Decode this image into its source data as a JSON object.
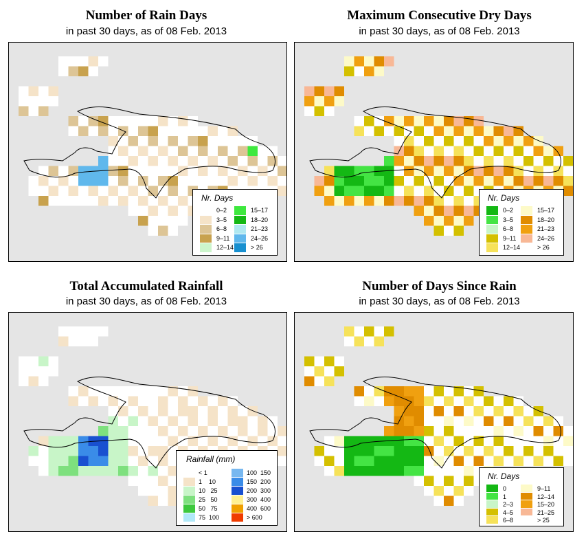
{
  "panels": [
    {
      "id": "rain_days",
      "title": "Number of Rain Days",
      "subtitle": "in past 30 days, as of  08 Feb. 2013",
      "legend": {
        "title": "Nr. Days",
        "items": [
          {
            "label": "0–2",
            "color": "#ffffff"
          },
          {
            "label": "3–5",
            "color": "#f5e3c8"
          },
          {
            "label": "6–8",
            "color": "#ddc596"
          },
          {
            "label": "9–11",
            "color": "#c8a24e"
          },
          {
            "label": "12–14",
            "color": "#ccf5cc"
          },
          {
            "label": "15–17",
            "color": "#3ee83e"
          },
          {
            "label": "18–20",
            "color": "#14b814"
          },
          {
            "label": "21–23",
            "color": "#b0e8f0"
          },
          {
            "label": "24–26",
            "color": "#60b8ec"
          },
          {
            "label": "> 26",
            "color": "#1890d0"
          }
        ]
      }
    },
    {
      "id": "max_dry_days",
      "title": "Maximum Consecutive Dry Days",
      "subtitle": "in past 30 days, as of  08 Feb. 2013",
      "legend": {
        "title": "Nr. Days",
        "items": [
          {
            "label": "0–2",
            "color": "#14b814"
          },
          {
            "label": "3–5",
            "color": "#44e444"
          },
          {
            "label": "6–8",
            "color": "#c8f5c8"
          },
          {
            "label": "9–11",
            "color": "#d4c000"
          },
          {
            "label": "12–14",
            "color": "#f6e25a"
          },
          {
            "label": "15–17",
            "color": "#fdfac8"
          },
          {
            "label": "18–20",
            "color": "#e08c00"
          },
          {
            "label": "21–23",
            "color": "#f0a010"
          },
          {
            "label": "24–26",
            "color": "#f8b896"
          },
          {
            "label": "> 26",
            "color": "#ffffff"
          }
        ]
      }
    },
    {
      "id": "total_rainfall",
      "title": "Total Accumulated Rainfall",
      "subtitle": "in past 30 days, as of  08 Feb. 2013",
      "legend": {
        "title": "Rainfall (mm)",
        "items": [
          {
            "label": "< 1",
            "color": "#ffffff"
          },
          {
            "label": "1    10",
            "color": "#f5e3c8"
          },
          {
            "label": "10   25",
            "color": "#c8f5c8"
          },
          {
            "label": "25   50",
            "color": "#7ee07e"
          },
          {
            "label": "50   75",
            "color": "#3cc83c"
          },
          {
            "label": "75  100",
            "color": "#b0e8f8"
          },
          {
            "label": "100  150",
            "color": "#78b8f0"
          },
          {
            "label": "150  200",
            "color": "#3a8ce8"
          },
          {
            "label": "200  300",
            "color": "#1850d0"
          },
          {
            "label": "300  400",
            "color": "#fff090"
          },
          {
            "label": "400  600",
            "color": "#f0a000"
          },
          {
            "label": "> 600",
            "color": "#f03c00"
          }
        ]
      }
    },
    {
      "id": "days_since_rain",
      "title": "Number of Days Since Rain",
      "subtitle": "in past 30 days, as of  08 Feb. 2013",
      "legend": {
        "title": "Nr. Days",
        "items": [
          {
            "label": "0",
            "color": "#14b814"
          },
          {
            "label": "1",
            "color": "#44e444"
          },
          {
            "label": "2–3",
            "color": "#c8f5c8"
          },
          {
            "label": "4–5",
            "color": "#d4c000"
          },
          {
            "label": "6–8",
            "color": "#f6e25a"
          },
          {
            "label": "9–11",
            "color": "#fdfac8"
          },
          {
            "label": "12–14",
            "color": "#e08c00"
          },
          {
            "label": "15–20",
            "color": "#f0a010"
          },
          {
            "label": "21–25",
            "color": "#f8b896"
          },
          {
            "label": "> 25",
            "color": "#ffffff"
          }
        ]
      }
    }
  ],
  "colors": {
    "background": "#e5e5e5",
    "land": "#ffffff",
    "coastline": "#000000"
  }
}
